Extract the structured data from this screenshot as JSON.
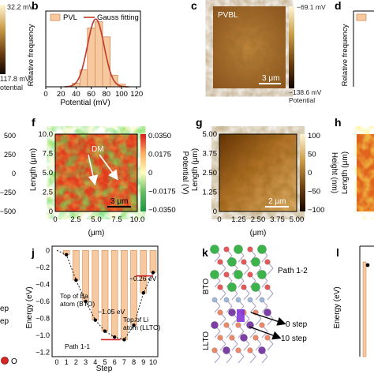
{
  "panel_letters": {
    "b": "b",
    "c": "c",
    "d": "d",
    "f": "f",
    "g": "g",
    "h": "h",
    "j": "j",
    "k": "k",
    "l": "l"
  },
  "edge_left": {
    "cbar_top_label": "32.2 mV",
    "cbar_bottom_label": "117.8 mV",
    "cbar_caption": "otential",
    "height_ticks": [
      "500",
      "250",
      "0",
      "−250",
      "−500"
    ],
    "legend_fragments": [
      "ep",
      "ep"
    ],
    "atom_legend": "O"
  },
  "panel_c": {
    "image_label": "PVBL",
    "scalebar_label": "3 μm",
    "cbar_top_label": "−69.1 mV",
    "cbar_bottom_label": "−138.6 mV",
    "cbar_caption": "Potential"
  },
  "panel_d": {
    "ylabel": "Relative frequency"
  },
  "panel_f": {
    "ylabel": "Length (μm)",
    "xlabel": "(μm)",
    "cbar_label": "Potential (V)",
    "xticks": [
      "0",
      "2.5",
      "5.0",
      "7.5",
      "10.0"
    ],
    "yticks": [
      "10.0",
      "7.5",
      "5.0",
      "2.5",
      "0"
    ],
    "cbar_ticks": [
      "0.0350",
      "0.0175",
      "0",
      "−0.0175",
      "−0.0350"
    ],
    "annotation": "DM",
    "scalebar_label": "3 μm"
  },
  "panel_g": {
    "ylabel": "Length (μm)",
    "xlabel": "(μm)",
    "cbar_label": "Height (nm)",
    "xticks": [
      "0",
      "1.25",
      "2.50",
      "3.75",
      "5.00"
    ],
    "yticks": [
      "5.00",
      "3.75",
      "2.50",
      "1.25",
      "0"
    ],
    "cbar_ticks": [
      "100",
      "50",
      "0",
      "−50",
      "−100"
    ],
    "scalebar_label": "2 μm"
  },
  "panel_h": {
    "ylabel": "Length (μm)"
  },
  "panel_k": {
    "path_label": "Path 1-2",
    "layer_top": "BTO",
    "layer_bottom": "LLTO",
    "step0": "0 step",
    "step10": "10 step"
  },
  "panel_l": {
    "ylabel": "Energy (eV)"
  },
  "chart_data": [
    {
      "panel": "b",
      "type": "bar",
      "xlabel": "Potential (mV)",
      "ylabel": "Relative frequency",
      "xticks": [
        0,
        20,
        40,
        60,
        80,
        100,
        120
      ],
      "xlim": [
        0,
        125
      ],
      "legend": [
        "PVL",
        "Gauss fitting"
      ],
      "legend_position": "top",
      "bins": [
        {
          "center": 40,
          "value": 0.04
        },
        {
          "center": 50,
          "value": 0.19
        },
        {
          "center": 60,
          "value": 0.66
        },
        {
          "center": 70,
          "value": 0.73
        },
        {
          "center": 80,
          "value": 0.56
        },
        {
          "center": 90,
          "value": 0.13
        },
        {
          "center": 100,
          "value": 0.03
        }
      ],
      "bin_width": 10,
      "fit": {
        "name": "Gauss fitting",
        "mean": 66,
        "sigma": 11,
        "peak": 0.76
      },
      "colors": {
        "bar": "#f7c9a0",
        "bar_edge": "#d48a55",
        "fit": "#c0392b"
      }
    },
    {
      "panel": "j",
      "type": "bar",
      "xlabel": "Step",
      "ylabel": "Energy (eV)",
      "xticks": [
        0,
        1,
        2,
        3,
        4,
        5,
        6,
        7,
        8,
        9,
        10
      ],
      "yticks": [
        "0",
        "−0.2",
        "−0.4",
        "−0.6",
        "−0.8",
        "−1.0",
        "−1.2"
      ],
      "ylim": [
        -1.25,
        0.05
      ],
      "steps": [
        1,
        2,
        3,
        4,
        5,
        6,
        7,
        8,
        9,
        10
      ],
      "values": [
        -0.05,
        -0.35,
        -0.6,
        -0.82,
        -0.95,
        -1.02,
        -1.05,
        -0.88,
        -0.5,
        -0.26
      ],
      "annotations": {
        "min_value": "−1.05 eV",
        "end_value": "−0.26 eV",
        "top_ba": "Top of Ba atom (BTO)",
        "top_li": "Top of Li atom (LLTO)",
        "path": "Path 1-1"
      },
      "colors": {
        "bar": "#f7c9a0",
        "bar_edge": "#d48a55",
        "line": "#111111",
        "arrow": "#d62728"
      }
    }
  ]
}
